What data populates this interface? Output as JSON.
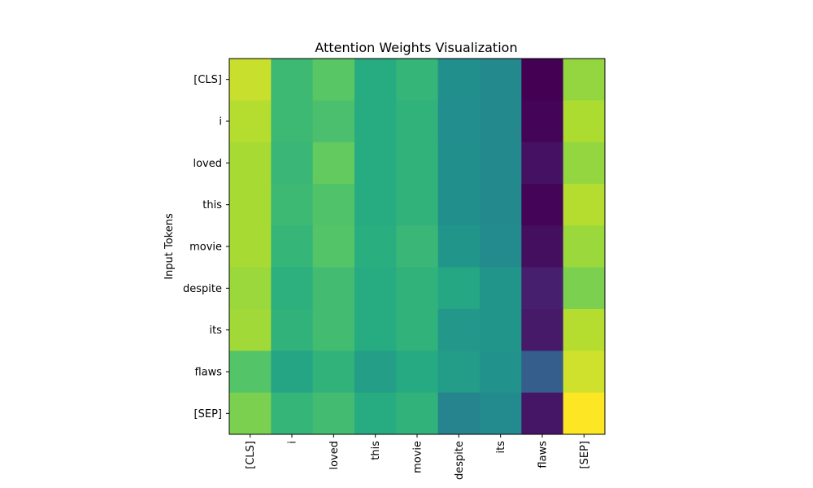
{
  "chart_data": {
    "type": "heatmap",
    "title": "Attention Weights Visualization",
    "xlabel": "",
    "ylabel": "Input Tokens",
    "x_categories": [
      "[CLS]",
      "i",
      "loved",
      "this",
      "movie",
      "despite",
      "its",
      "flaws",
      "[SEP]"
    ],
    "y_categories": [
      "[CLS]",
      "i",
      "loved",
      "this",
      "movie",
      "despite",
      "its",
      "flaws",
      "[SEP]"
    ],
    "colormap": "viridis",
    "value_range": [
      0,
      1
    ],
    "values": [
      [
        0.92,
        0.68,
        0.74,
        0.62,
        0.66,
        0.5,
        0.47,
        0.0,
        0.84
      ],
      [
        0.89,
        0.68,
        0.71,
        0.62,
        0.65,
        0.49,
        0.47,
        0.01,
        0.88
      ],
      [
        0.87,
        0.67,
        0.76,
        0.62,
        0.65,
        0.5,
        0.47,
        0.05,
        0.84
      ],
      [
        0.87,
        0.68,
        0.72,
        0.62,
        0.65,
        0.5,
        0.47,
        0.01,
        0.89
      ],
      [
        0.87,
        0.66,
        0.73,
        0.63,
        0.67,
        0.52,
        0.48,
        0.04,
        0.85
      ],
      [
        0.85,
        0.64,
        0.69,
        0.62,
        0.65,
        0.6,
        0.52,
        0.09,
        0.8
      ],
      [
        0.86,
        0.65,
        0.69,
        0.62,
        0.65,
        0.53,
        0.52,
        0.07,
        0.89
      ],
      [
        0.73,
        0.59,
        0.65,
        0.56,
        0.61,
        0.55,
        0.51,
        0.3,
        0.93
      ],
      [
        0.8,
        0.66,
        0.69,
        0.62,
        0.65,
        0.45,
        0.48,
        0.06,
        1.0
      ]
    ]
  }
}
